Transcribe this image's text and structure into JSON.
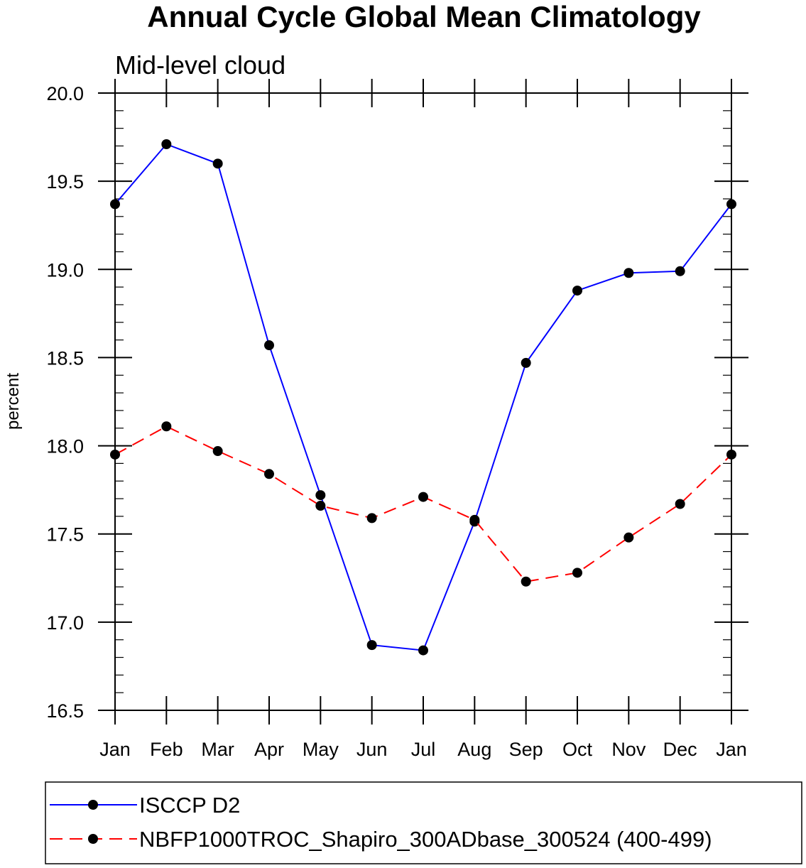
{
  "chart_data": {
    "type": "line",
    "title": "Annual Cycle Global Mean Climatology",
    "subtitle": "Mid-level cloud",
    "xlabel": "",
    "ylabel": "percent",
    "categories": [
      "Jan",
      "Feb",
      "Mar",
      "Apr",
      "May",
      "Jun",
      "Jul",
      "Aug",
      "Sep",
      "Oct",
      "Nov",
      "Dec",
      "Jan"
    ],
    "ylim": [
      16.5,
      20.0
    ],
    "yticks": [
      "16.5",
      "17.0",
      "17.5",
      "18.0",
      "18.5",
      "19.0",
      "19.5",
      "20.0"
    ],
    "legend_position": "bottom",
    "series": [
      {
        "name": "ISCCP D2",
        "color": "#0000ff",
        "dash": "solid",
        "values": [
          19.37,
          19.71,
          19.6,
          18.57,
          17.72,
          16.87,
          16.84,
          17.57,
          18.47,
          18.88,
          18.98,
          18.99,
          19.37
        ]
      },
      {
        "name": "NBFP1000TROC_Shapiro_300ADbase_300524 (400-499)",
        "color": "#ff0000",
        "dash": "dashed",
        "values": [
          17.95,
          18.11,
          17.97,
          17.84,
          17.66,
          17.59,
          17.71,
          17.58,
          17.23,
          17.28,
          17.48,
          17.67,
          17.95
        ]
      }
    ]
  }
}
